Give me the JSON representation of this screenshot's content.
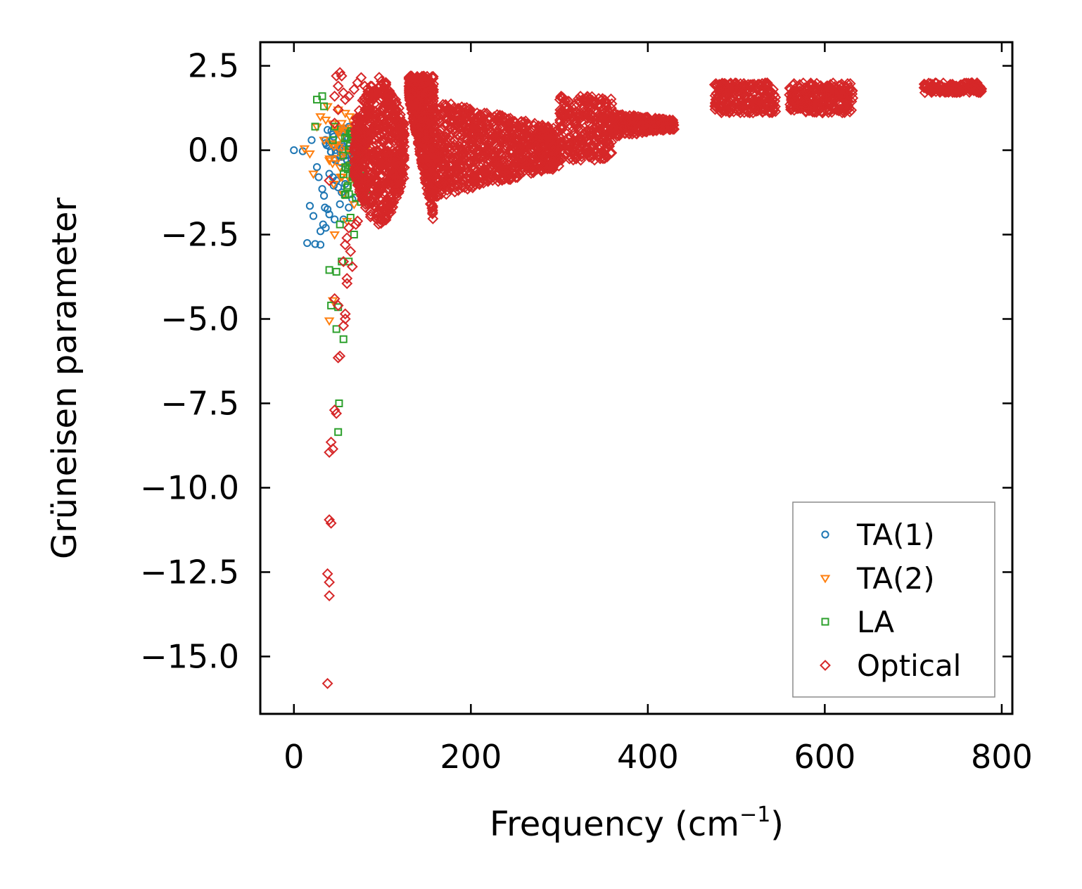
{
  "chart_data": {
    "type": "scatter",
    "title": "",
    "xlabel": "Frequency (cm",
    "xlabel_sup": "−1",
    "xlabel_tail": ")",
    "ylabel": "Grüneisen parameter",
    "xlim": [
      -38,
      812
    ],
    "ylim": [
      -16.7,
      3.2
    ],
    "xticks": [
      0,
      200,
      400,
      600,
      800
    ],
    "xtick_labels": [
      "0",
      "200",
      "400",
      "600",
      "800"
    ],
    "yticks": [
      2.5,
      0.0,
      -2.5,
      -5.0,
      -7.5,
      -10.0,
      -12.5,
      -15.0
    ],
    "ytick_labels": [
      "2.5",
      "0.0",
      "−2.5",
      "−5.0",
      "−7.5",
      "−10.0",
      "−12.5",
      "−15.0"
    ],
    "grid": false,
    "legend_position": "bottom-right",
    "series": [
      {
        "name": "TA(1)",
        "marker": "circle",
        "color": "#1f77b4",
        "points": [
          [
            0,
            0
          ],
          [
            10,
            -0.03
          ],
          [
            15,
            -2.75
          ],
          [
            18,
            -1.65
          ],
          [
            20,
            0.3
          ],
          [
            22,
            -1.95
          ],
          [
            24,
            -2.78
          ],
          [
            26,
            -0.5
          ],
          [
            28,
            -0.8
          ],
          [
            30,
            -2.4
          ],
          [
            30,
            -2.8
          ],
          [
            32,
            -1.15
          ],
          [
            33,
            -2.2
          ],
          [
            34,
            -1.35
          ],
          [
            35,
            -1.7
          ],
          [
            36,
            -2.3
          ],
          [
            37,
            0.15
          ],
          [
            38,
            -1.75
          ],
          [
            38,
            0.6
          ],
          [
            40,
            -0.7
          ],
          [
            40,
            -1.9
          ],
          [
            42,
            -0.05
          ],
          [
            44,
            -0.8
          ],
          [
            45,
            -1.05
          ],
          [
            45,
            0.4
          ],
          [
            46,
            -2.05
          ],
          [
            47,
            -0.3
          ],
          [
            48,
            -0.9
          ],
          [
            50,
            -1.1
          ],
          [
            50,
            0.55
          ],
          [
            52,
            -1.6
          ],
          [
            53,
            -0.2
          ],
          [
            54,
            -1.25
          ],
          [
            55,
            0.1
          ],
          [
            56,
            -2.05
          ],
          [
            58,
            -1.0
          ],
          [
            60,
            -0.45
          ],
          [
            60,
            0.35
          ],
          [
            62,
            -1.7
          ],
          [
            63,
            0.2
          ],
          [
            65,
            -0.6
          ],
          [
            66,
            -1.45
          ],
          [
            68,
            0.05
          ],
          [
            70,
            -0.3
          ],
          [
            72,
            0.25
          ],
          [
            74,
            -0.1
          ],
          [
            76,
            0.15
          ]
        ],
        "clusters": [
          {
            "x": [
              35,
              78
            ],
            "y": [
              -0.4,
              0.7
            ],
            "n": 45
          }
        ]
      },
      {
        "name": "TA(2)",
        "marker": "triangle-down",
        "color": "#ff7f0e",
        "points": [
          [
            12,
            0.05
          ],
          [
            18,
            -0.1
          ],
          [
            22,
            -0.7
          ],
          [
            26,
            0.7
          ],
          [
            30,
            1.0
          ],
          [
            34,
            0.3
          ],
          [
            36,
            0.9
          ],
          [
            38,
            1.3
          ],
          [
            40,
            -0.3
          ],
          [
            40,
            -5.05
          ],
          [
            42,
            0.2
          ],
          [
            44,
            -4.45
          ],
          [
            45,
            -1.0
          ],
          [
            46,
            -2.5
          ],
          [
            48,
            0.6
          ],
          [
            50,
            1.2
          ],
          [
            52,
            -0.5
          ],
          [
            54,
            0.8
          ],
          [
            56,
            -1.3
          ],
          [
            58,
            1.1
          ],
          [
            60,
            -2.1
          ],
          [
            62,
            0.5
          ],
          [
            63,
            1.0
          ],
          [
            64,
            -0.9
          ],
          [
            66,
            0.4
          ],
          [
            68,
            -1.6
          ],
          [
            70,
            0.9
          ],
          [
            72,
            -0.2
          ],
          [
            74,
            -1.1
          ],
          [
            76,
            0.7
          ],
          [
            78,
            -0.6
          ],
          [
            80,
            0.3
          ],
          [
            80,
            -1.3
          ]
        ],
        "clusters": [
          {
            "x": [
              40,
              82
            ],
            "y": [
              -0.8,
              0.9
            ],
            "n": 35
          }
        ]
      },
      {
        "name": "LA",
        "marker": "square",
        "color": "#2ca02c",
        "points": [
          [
            24,
            0.7
          ],
          [
            26,
            1.5
          ],
          [
            32,
            1.6
          ],
          [
            34,
            1.3
          ],
          [
            40,
            -3.55
          ],
          [
            42,
            -4.6
          ],
          [
            44,
            0.3
          ],
          [
            46,
            0.7
          ],
          [
            48,
            -3.6
          ],
          [
            48,
            -5.3
          ],
          [
            50,
            -4.65
          ],
          [
            51,
            -7.5
          ],
          [
            50,
            -8.35
          ],
          [
            52,
            -2.2
          ],
          [
            54,
            -3.3
          ],
          [
            56,
            -5.6
          ],
          [
            58,
            -0.5
          ],
          [
            60,
            -1.1
          ],
          [
            62,
            -3.3
          ],
          [
            64,
            -2.0
          ],
          [
            66,
            -0.8
          ],
          [
            68,
            -2.5
          ],
          [
            70,
            -1.4
          ],
          [
            72,
            -0.3
          ],
          [
            74,
            -1.0
          ],
          [
            76,
            -0.6
          ],
          [
            78,
            0.4
          ],
          [
            80,
            -0.2
          ],
          [
            82,
            0.2
          ],
          [
            82,
            -1.2
          ]
        ],
        "clusters": [
          {
            "x": [
              55,
              82
            ],
            "y": [
              -1.6,
              0.6
            ],
            "n": 40
          }
        ]
      },
      {
        "name": "Optical",
        "marker": "diamond",
        "color": "#d62728",
        "points": [
          [
            38,
            -15.8
          ],
          [
            38,
            -12.55
          ],
          [
            40,
            -12.8
          ],
          [
            40,
            -13.2
          ],
          [
            40,
            -10.95
          ],
          [
            42,
            -11.05
          ],
          [
            40,
            -8.95
          ],
          [
            44,
            -8.85
          ],
          [
            42,
            -8.65
          ],
          [
            46,
            -7.7
          ],
          [
            48,
            -7.8
          ],
          [
            50,
            -6.15
          ],
          [
            52,
            -6.1
          ],
          [
            46,
            -4.4
          ],
          [
            50,
            -4.6
          ],
          [
            56,
            -5.2
          ],
          [
            58,
            -4.85
          ],
          [
            58,
            -5.0
          ],
          [
            60,
            -3.8
          ],
          [
            60,
            -3.95
          ],
          [
            64,
            -3.0
          ],
          [
            66,
            -3.45
          ],
          [
            56,
            -3.3
          ],
          [
            58,
            -2.8
          ],
          [
            60,
            -2.6
          ],
          [
            62,
            -2.3
          ],
          [
            70,
            -2.2
          ],
          [
            72,
            -2.1
          ],
          [
            40,
            -0.9
          ],
          [
            46,
            1.6
          ],
          [
            48,
            2.2
          ],
          [
            50,
            1.9
          ],
          [
            52,
            2.3
          ],
          [
            54,
            2.2
          ],
          [
            56,
            1.7
          ],
          [
            58,
            1.5
          ],
          [
            62,
            1.6
          ],
          [
            68,
            1.8
          ],
          [
            72,
            2.0
          ],
          [
            76,
            2.15
          ],
          [
            80,
            1.9
          ],
          [
            84,
            1.6
          ],
          [
            46,
            0.8
          ],
          [
            50,
            1.2
          ]
        ],
        "clusters": [
          {
            "x": [
              68,
              125
            ],
            "y": [
              -2.2,
              2.2
            ],
            "shape": "lens",
            "n": 700
          },
          {
            "x": [
              130,
              158
            ],
            "y": [
              -2.2,
              2.2
            ],
            "shape": "wedge",
            "n": 650
          },
          {
            "x": [
              158,
              300
            ],
            "y": [
              -1.4,
              1.5
            ],
            "shape": "taper",
            "n": 900
          },
          {
            "x": [
              300,
              360
            ],
            "y": [
              -0.3,
              1.6
            ],
            "n": 300
          },
          {
            "x": [
              360,
              430
            ],
            "y": [
              0.4,
              1.1
            ],
            "shape": "taper",
            "n": 260
          },
          {
            "x": [
              475,
              545
            ],
            "y": [
              1.1,
              2.0
            ],
            "n": 260
          },
          {
            "x": [
              560,
              632
            ],
            "y": [
              1.1,
              2.0
            ],
            "n": 260
          },
          {
            "x": [
              712,
              778
            ],
            "y": [
              1.7,
              2.0
            ],
            "n": 160
          }
        ]
      }
    ]
  }
}
